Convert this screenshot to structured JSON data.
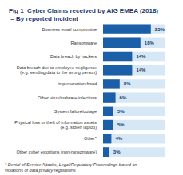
{
  "chart_data": {
    "type": "bar",
    "orientation": "horizontal",
    "title": "Fig 1  Cyber Claims received by AIG EMEA (2018)  – By reported incident",
    "categories": [
      "Business email compromise",
      "Ransomware",
      "Data breach by hackers",
      "Data breach due to employee negligence\n(e.g. sending data to the wrong person)",
      "Impersonation fraud",
      "Other virus/malware infections",
      "System failure/outage",
      "Physical loss or theft of information assets\n(e.g. stolen laptop)",
      "Other*",
      "Other cyber extortions (non-ransomware)"
    ],
    "values": [
      23,
      18,
      14,
      14,
      8,
      6,
      5,
      5,
      4,
      3
    ],
    "value_labels": [
      "23%",
      "18%",
      "14%",
      "14%",
      "8%",
      "6%",
      "5%",
      "5%",
      "4%",
      "3%"
    ],
    "data_labels": true,
    "color": "#1a5fa8",
    "xlim": [
      0,
      30
    ],
    "tick_labels": "y",
    "grid": false,
    "annotations": [
      "* Denial of Service Attacks, Legal/Regulatory Proceedings based on violations of data privacy regulations"
    ]
  }
}
